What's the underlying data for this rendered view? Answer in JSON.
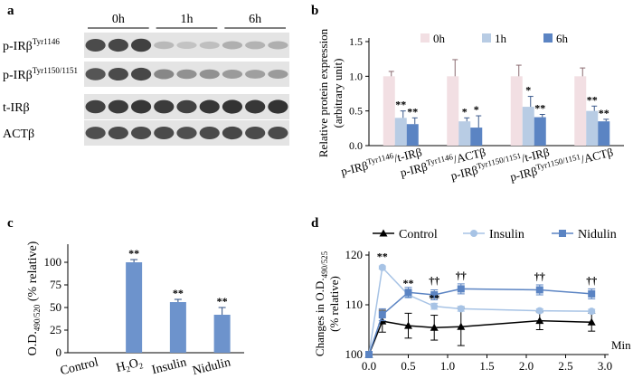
{
  "panel_labels": [
    "a",
    "b",
    "c",
    "d"
  ],
  "blot": {
    "time_labels": [
      "0h",
      "1h",
      "6h"
    ],
    "rows": [
      {
        "main": "p-IRβ",
        "sup": "Tyr1146",
        "band_intensity": [
          0.8,
          0.82,
          0.85,
          0.25,
          0.2,
          0.22,
          0.3,
          0.28,
          0.3
        ]
      },
      {
        "main": "p-IRβ",
        "sup": "Tyr1150/1151",
        "band_intensity": [
          0.75,
          0.8,
          0.82,
          0.5,
          0.45,
          0.45,
          0.4,
          0.38,
          0.4
        ]
      },
      {
        "main": "t-IRβ",
        "sup": "",
        "band_intensity": [
          0.85,
          0.88,
          0.9,
          0.88,
          0.85,
          0.9,
          0.92,
          0.9,
          0.92
        ]
      },
      {
        "main": "ACTβ",
        "sup": "",
        "band_intensity": [
          0.78,
          0.8,
          0.8,
          0.8,
          0.78,
          0.8,
          0.82,
          0.8,
          0.8
        ]
      }
    ]
  },
  "chart_data": [
    {
      "id": "b",
      "type": "bar",
      "ylabel": "Relative protein expression",
      "ylabel2": "(arbitrary unit)",
      "ylim": [
        0,
        1.5
      ],
      "yticks": [
        "0.0",
        "0.5",
        "1.0",
        "1.5"
      ],
      "categories": [
        {
          "a": "p-IRβ",
          "as": "Tyr1146",
          "b": "/t-IRβ",
          "bs": ""
        },
        {
          "a": "p-IRβ",
          "as": "Tyr1146",
          "b": "/ACTβ",
          "bs": ""
        },
        {
          "a": "p-IRβ",
          "as": "Tyr1150/1151",
          "b": "/t-IRβ",
          "bs": ""
        },
        {
          "a": "p-IRβ",
          "as": "Tyr1150/1151",
          "b": "/ACTβ",
          "bs": ""
        }
      ],
      "series": [
        {
          "name": "0h",
          "color": "#f2dfe3",
          "values": [
            1.0,
            1.0,
            1.0,
            1.0
          ],
          "errors": [
            0.07,
            0.24,
            0.16,
            0.12
          ],
          "sig": [
            "",
            "",
            "",
            ""
          ]
        },
        {
          "name": "1h",
          "color": "#b8cce4",
          "values": [
            0.4,
            0.35,
            0.56,
            0.5
          ],
          "errors": [
            0.1,
            0.05,
            0.15,
            0.07
          ],
          "sig": [
            "**",
            "*",
            "*",
            "**"
          ]
        },
        {
          "name": "6h",
          "color": "#5b84c3",
          "values": [
            0.31,
            0.26,
            0.41,
            0.35
          ],
          "errors": [
            0.09,
            0.17,
            0.04,
            0.03
          ],
          "sig": [
            "**",
            "*",
            "**",
            "**"
          ]
        }
      ]
    },
    {
      "id": "c",
      "type": "bar",
      "ylabel": "O.D.",
      "ylabel_sub": "490/520",
      "ylabel_rest": " (% relative)",
      "ylim": [
        0,
        120
      ],
      "yticks": [
        "0",
        "25",
        "50",
        "75",
        "100"
      ],
      "categories": [
        {
          "main": "Control",
          "sub": "",
          "rest": ""
        },
        {
          "main": "H",
          "sub": "2",
          "rest": "O",
          "sub2": "2"
        },
        {
          "main": "Insulin",
          "sub": "",
          "rest": ""
        },
        {
          "main": "Nidulin",
          "sub": "",
          "rest": ""
        }
      ],
      "values": [
        0,
        100,
        56,
        42
      ],
      "errors": [
        0,
        3,
        3,
        8
      ],
      "sig": [
        "",
        "**",
        "**",
        "**"
      ],
      "color": "#6d93cc"
    },
    {
      "id": "d",
      "type": "line",
      "ylabel": "Changes in O.D.",
      "ylabel_sub": "490/525",
      "ylabel2": "(% relative)",
      "xlabel": "Min",
      "xlim": [
        0,
        3
      ],
      "ylim": [
        100,
        120
      ],
      "xticks": [
        "0.0",
        "0.5",
        "1.0",
        "1.5",
        "2.0",
        "2.5",
        "3.0"
      ],
      "yticks": [
        "100",
        "110",
        "120"
      ],
      "series": [
        {
          "name": "Control",
          "color": "#000000",
          "marker": "triangle",
          "x": [
            0,
            0.17,
            0.5,
            0.83,
            1.17,
            2.17,
            2.83
          ],
          "y": [
            100,
            106.7,
            105.8,
            105.4,
            105.6,
            106.8,
            106.5
          ],
          "errors": [
            0,
            2.2,
            2.5,
            2.5,
            3.8,
            1.8,
            1.8
          ]
        },
        {
          "name": "Insulin",
          "color": "#a7c3e5",
          "marker": "circle",
          "x": [
            0,
            0.17,
            0.5,
            0.83,
            1.17,
            2.17,
            2.83
          ],
          "y": [
            100,
            117.5,
            112.0,
            109.7,
            109.2,
            108.8,
            108.7
          ],
          "errors": [
            0,
            0.3,
            0.6,
            0.6,
            0.5,
            0.4,
            0.4
          ]
        },
        {
          "name": "Nidulin",
          "color": "#5b84c3",
          "marker": "square",
          "x": [
            0,
            0.17,
            0.5,
            0.83,
            1.17,
            2.17,
            2.83
          ],
          "y": [
            100,
            108.0,
            112.5,
            112.0,
            113.2,
            113.0,
            112.2
          ],
          "errors": [
            0,
            1.2,
            1.0,
            1.0,
            1.0,
            1.0,
            1.0
          ]
        }
      ],
      "annotations": [
        {
          "text": "**",
          "x": 0.17,
          "y": 119.0
        },
        {
          "text": "**",
          "x": 0.5,
          "y": 113.6
        },
        {
          "text": "**",
          "x": 0.83,
          "y": 110.6
        },
        {
          "text": "††",
          "x": 0.83,
          "y": 114.2
        },
        {
          "text": "††",
          "x": 1.17,
          "y": 115.2
        },
        {
          "text": "††",
          "x": 2.17,
          "y": 115.0
        },
        {
          "text": "††",
          "x": 2.83,
          "y": 114.2
        }
      ]
    }
  ]
}
